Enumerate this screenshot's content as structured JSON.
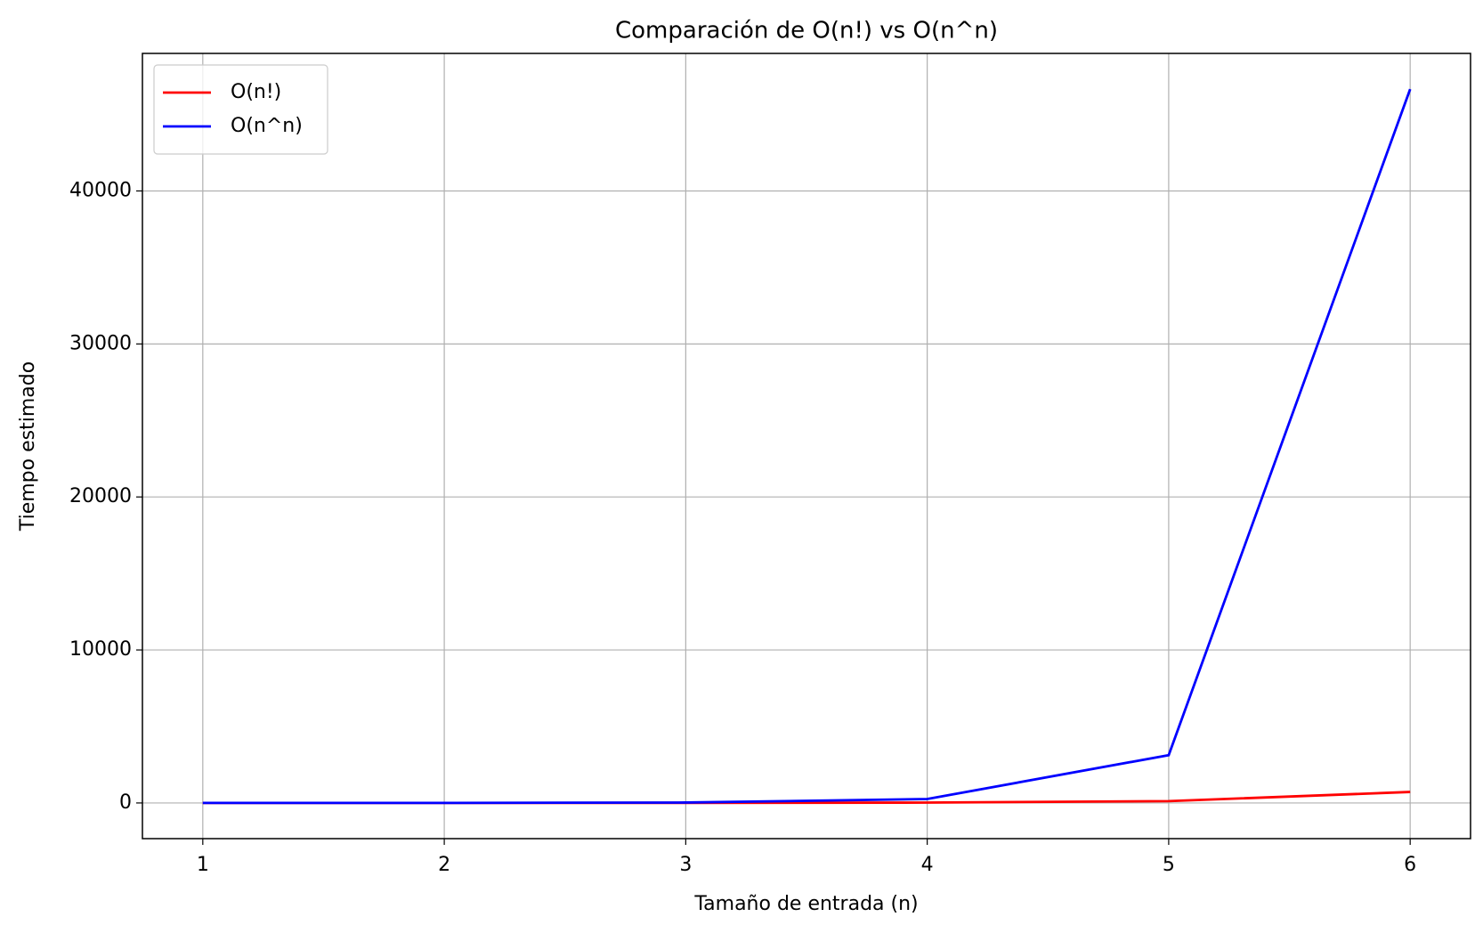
{
  "chart_data": {
    "type": "line",
    "title": "Comparación de O(n!) vs O(n^n)",
    "x_label": "Tamaño de entrada (n)",
    "y_label": "Tiempo estimado",
    "x": [
      1,
      2,
      3,
      4,
      5,
      6
    ],
    "series": [
      {
        "name": "O(n!)",
        "color": "#ff0000",
        "values": [
          1,
          2,
          6,
          24,
          120,
          720
        ]
      },
      {
        "name": "O(n^n)",
        "color": "#0000ff",
        "values": [
          1,
          4,
          27,
          256,
          3125,
          46656
        ]
      }
    ],
    "xlim": [
      0.75,
      6.25
    ],
    "ylim": [
      -2331.75,
      48988.75
    ],
    "xticks": [
      1,
      2,
      3,
      4,
      5,
      6
    ],
    "yticks": [
      0,
      10000,
      20000,
      30000,
      40000
    ],
    "grid": true,
    "legend": "upper left"
  }
}
